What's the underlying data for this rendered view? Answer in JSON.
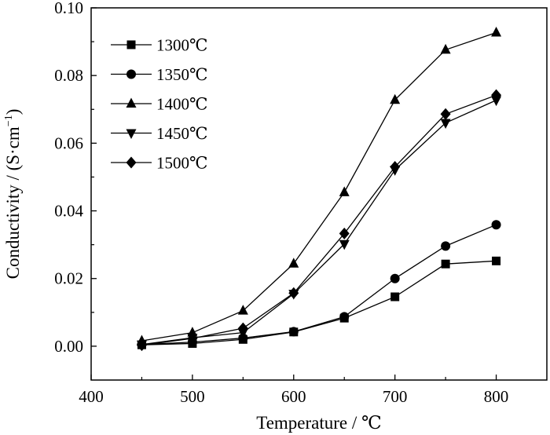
{
  "chart_data": {
    "type": "line",
    "title": "",
    "xlabel": "Temperature / ℃",
    "ylabel": "Conductivity / (S·cm",
    "ylabel_sup": "−1",
    "ylabel_close": ")",
    "xlim": [
      400,
      850
    ],
    "ylim": [
      -0.01,
      0.1
    ],
    "xticks": [
      400,
      500,
      600,
      700,
      800
    ],
    "xtick_labels": [
      "400",
      "500",
      "600",
      "700",
      "800"
    ],
    "yticks": [
      0.0,
      0.02,
      0.04,
      0.06,
      0.08,
      0.1
    ],
    "ytick_labels": [
      "0.00",
      "0.02",
      "0.04",
      "0.06",
      "0.08",
      "0.10"
    ],
    "grid": false,
    "legend_position": "top-left",
    "x": [
      450,
      500,
      550,
      600,
      650,
      700,
      750,
      800
    ],
    "series": [
      {
        "name": "1300℃",
        "marker": "square",
        "values": [
          0.0004,
          0.0008,
          0.002,
          0.0042,
          0.0083,
          0.0146,
          0.0243,
          0.0252
        ]
      },
      {
        "name": "1350℃",
        "marker": "circle",
        "values": [
          0.0005,
          0.0012,
          0.0024,
          0.0043,
          0.0087,
          0.02,
          0.0296,
          0.0359
        ]
      },
      {
        "name": "1400℃",
        "marker": "triangle-up",
        "values": [
          0.0016,
          0.004,
          0.0105,
          0.0244,
          0.0455,
          0.0728,
          0.0876,
          0.0927
        ]
      },
      {
        "name": "1450℃",
        "marker": "triangle-down",
        "values": [
          0.0005,
          0.0025,
          0.004,
          0.0155,
          0.0302,
          0.0521,
          0.066,
          0.0727
        ]
      },
      {
        "name": "1500℃",
        "marker": "diamond",
        "values": [
          0.0003,
          0.0023,
          0.0053,
          0.0157,
          0.0333,
          0.053,
          0.0686,
          0.0742
        ]
      }
    ]
  }
}
